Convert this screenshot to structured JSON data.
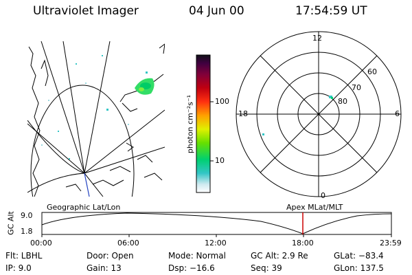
{
  "header": {
    "title": "Ultraviolet Imager",
    "date": "04 Jun 00",
    "time": "17:54:59 UT"
  },
  "colorbar": {
    "label": "photon cm⁻²s⁻¹",
    "ticks": [
      "100",
      "10"
    ]
  },
  "polar": {
    "mlt_labels": [
      "12",
      "18",
      "6",
      "0"
    ],
    "lat_labels": [
      "60",
      "70",
      "80"
    ]
  },
  "panels": {
    "left_caption": "Geographic Lat/Lon",
    "right_caption": "Apex MLat/MLT"
  },
  "altitude_plot": {
    "ylabel": "GC Alt",
    "yticks": [
      "9.0",
      "1.8"
    ],
    "xticks": [
      "00:00",
      "06:00",
      "12:00",
      "18:00",
      "23:59"
    ],
    "current_marker_color": "#cc0000"
  },
  "info": {
    "flt": "Flt: LBHL",
    "ip": "IP:  9.0",
    "door": "Door: Open",
    "gain": "Gain: 13",
    "mode": "Mode: Normal",
    "dsp": "Dsp:  −16.6",
    "gcalt": "GC Alt: 2.9 Re",
    "seq": "Seq: 39",
    "glat": "GLat: −83.4",
    "glon": "GLon: 137.5"
  }
}
